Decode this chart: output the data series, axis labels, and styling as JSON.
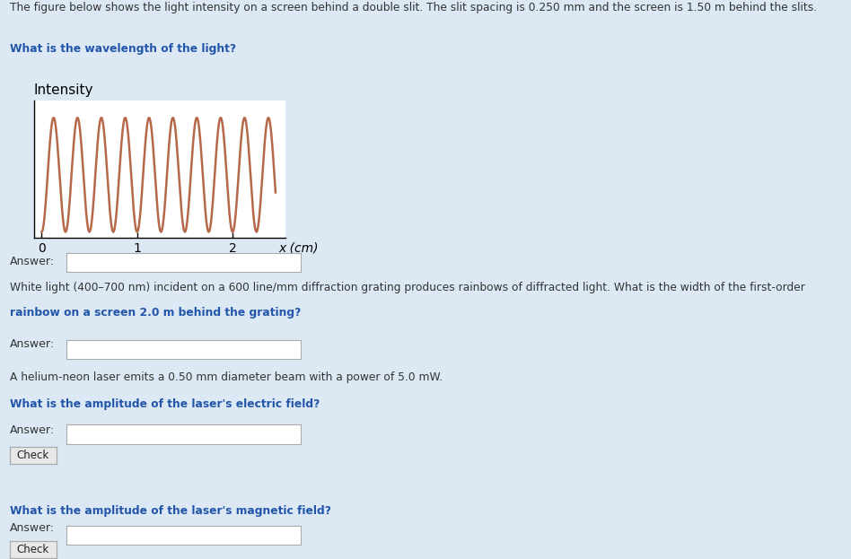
{
  "page_bg": "#dce9f5",
  "white_bg": "#ffffff",
  "text_color": "#333333",
  "blue_text": "#2255aa",
  "header_line1": "The figure below shows the light intensity on a screen behind a double slit. The slit spacing is 0.250 mm and the screen is 1.50 m behind the slits.",
  "header_line2": "What is the wavelength of the light?",
  "plot_title": "Intensity",
  "xlabel": "x (cm)",
  "xticks": [
    0,
    1,
    2
  ],
  "xlim": [
    -0.08,
    2.55
  ],
  "ylim": [
    -0.05,
    1.15
  ],
  "curve_color": "#b5694a",
  "curve_lw": 1.8,
  "section2_line1": "White light (400–700 nm) incident on a 600 line/mm diffraction grating produces rainbows of diffracted light. What is the width of the first-order",
  "section2_line2": "rainbow on a screen 2.0 m behind the grating?",
  "section3_line1": "A helium-neon laser emits a 0.50 mm diameter beam with a power of 5.0 mW.",
  "section3_line2": "What is the amplitude of the laser's electric field?",
  "section4_line1": "What is the amplitude of the laser's magnetic field?",
  "divider_color": "#ffffff",
  "check_bg": "#e8e8e8",
  "check_border": "#aaaaaa"
}
